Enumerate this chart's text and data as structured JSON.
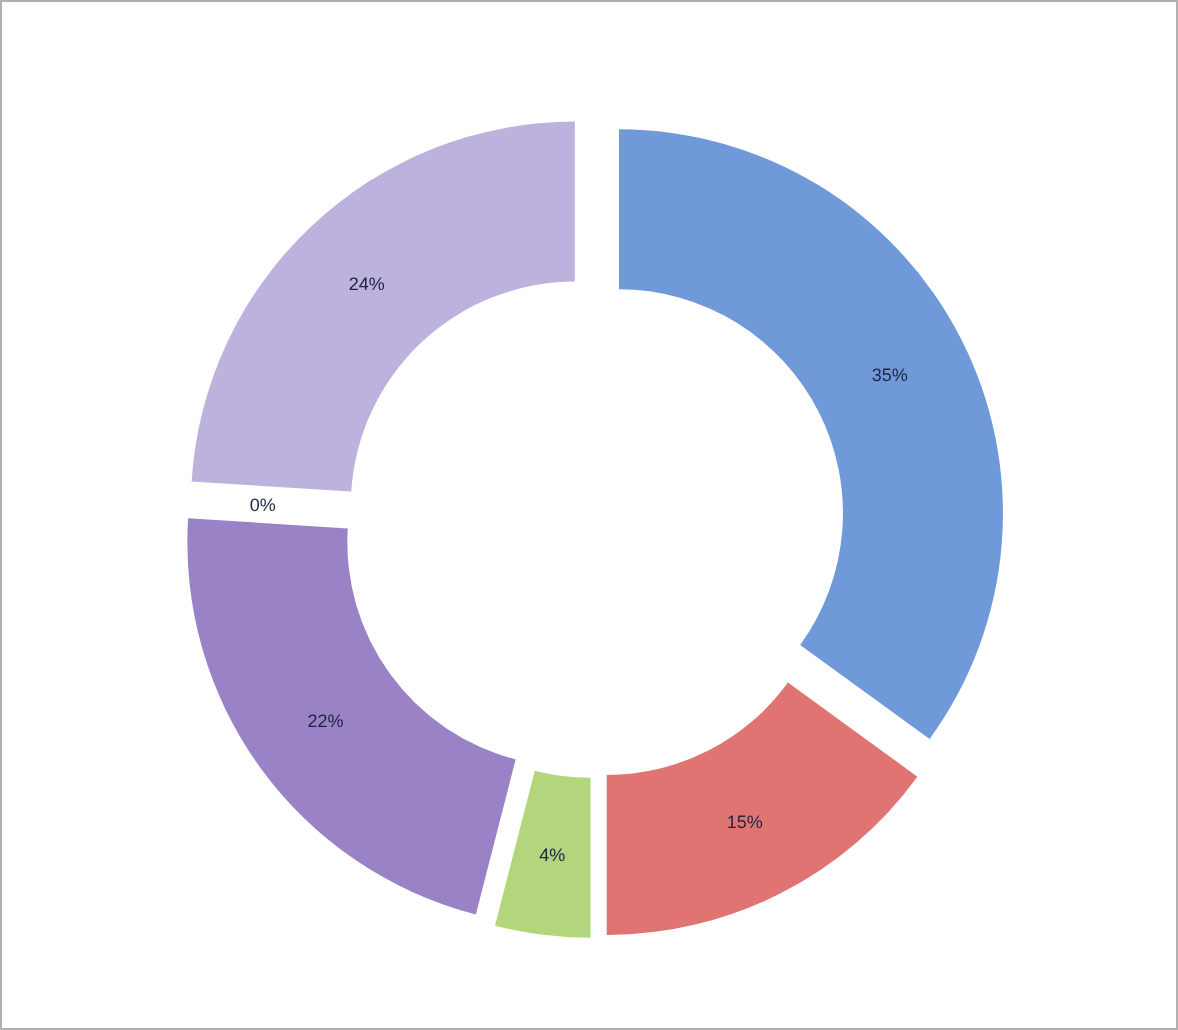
{
  "chart_data": {
    "type": "donut",
    "categories": [
      null,
      null,
      null,
      null,
      null,
      null
    ],
    "values": [
      35,
      15,
      4,
      22,
      0,
      24
    ],
    "colors": [
      "#6f99d9",
      "#e07472",
      "#b3d57c",
      "#9a82c6",
      "#4bacc6",
      "#bdb1dd"
    ],
    "value_labels": [
      "35%",
      "15%",
      "4%",
      "22%",
      "0%",
      "24%"
    ]
  }
}
